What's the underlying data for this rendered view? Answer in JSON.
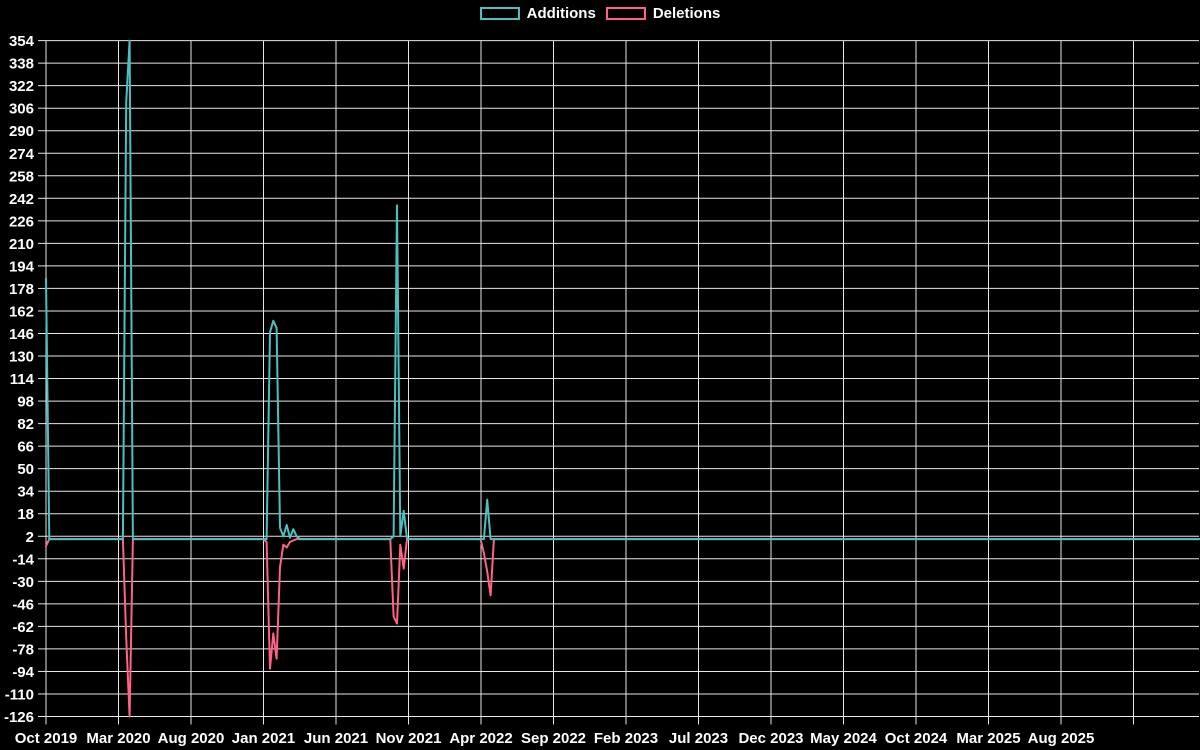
{
  "legend": {
    "items": [
      {
        "label": "Additions",
        "color": "#4bc0c0"
      },
      {
        "label": "Deletions",
        "color": "#ff6384"
      }
    ]
  },
  "chart_data": {
    "type": "line",
    "title": "",
    "xlabel": "",
    "ylabel": "",
    "background_color": "#000000",
    "grid": true,
    "grid_color": "#e6e6e6",
    "text_color": "#ffffff",
    "legend_position": "top",
    "ylim": [
      -126,
      354
    ],
    "y_tick_step": 16,
    "y_ticks": [
      354,
      338,
      322,
      306,
      290,
      274,
      258,
      242,
      226,
      210,
      194,
      178,
      162,
      146,
      130,
      114,
      98,
      82,
      66,
      50,
      34,
      18,
      2,
      -14,
      -30,
      -46,
      -62,
      -78,
      -94,
      -110,
      -126
    ],
    "x_tick_labels": [
      "Oct 2019",
      "Mar 2020",
      "Aug 2020",
      "Jan 2021",
      "Jun 2021",
      "Nov 2021",
      "Apr 2022",
      "Sep 2022",
      "Feb 2023",
      "Jul 2023",
      "Dec 2023",
      "May 2024",
      "Oct 2024",
      "Mar 2025",
      "Aug 2025"
    ],
    "x_unit": "weeks since Oct 2019 (labels every ~5 months, ~21.7 weeks apart)",
    "series": [
      {
        "name": "Additions",
        "color": "#4bc0c0",
        "points": [
          [
            0,
            185
          ],
          [
            1,
            0
          ],
          [
            23,
            0
          ],
          [
            24,
            310
          ],
          [
            25,
            354
          ],
          [
            26,
            0
          ],
          [
            65,
            0
          ],
          [
            66,
            0
          ],
          [
            67,
            147
          ],
          [
            68,
            155
          ],
          [
            69,
            150
          ],
          [
            70,
            8
          ],
          [
            71,
            2
          ],
          [
            72,
            10
          ],
          [
            73,
            1
          ],
          [
            74,
            7
          ],
          [
            75,
            2
          ],
          [
            76,
            0
          ],
          [
            103,
            0
          ],
          [
            104,
            2
          ],
          [
            105,
            237
          ],
          [
            106,
            2
          ],
          [
            107,
            20
          ],
          [
            108,
            0
          ],
          [
            130,
            0
          ],
          [
            131,
            0
          ],
          [
            132,
            28
          ],
          [
            133,
            0
          ],
          [
            345,
            0
          ]
        ]
      },
      {
        "name": "Deletions",
        "color": "#ff6384",
        "points": [
          [
            0,
            -5
          ],
          [
            1,
            0
          ],
          [
            23,
            0
          ],
          [
            24,
            -70
          ],
          [
            25,
            -126
          ],
          [
            26,
            0
          ],
          [
            65,
            0
          ],
          [
            66,
            -2
          ],
          [
            67,
            -92
          ],
          [
            68,
            -67
          ],
          [
            69,
            -85
          ],
          [
            70,
            -20
          ],
          [
            71,
            -4
          ],
          [
            72,
            -6
          ],
          [
            73,
            -2
          ],
          [
            74,
            -1
          ],
          [
            75,
            0
          ],
          [
            103,
            0
          ],
          [
            104,
            -55
          ],
          [
            105,
            -60
          ],
          [
            106,
            -4
          ],
          [
            107,
            -21
          ],
          [
            108,
            0
          ],
          [
            130,
            0
          ],
          [
            131,
            -10
          ],
          [
            132,
            -23
          ],
          [
            133,
            -40
          ],
          [
            134,
            0
          ],
          [
            345,
            0
          ]
        ]
      }
    ]
  }
}
